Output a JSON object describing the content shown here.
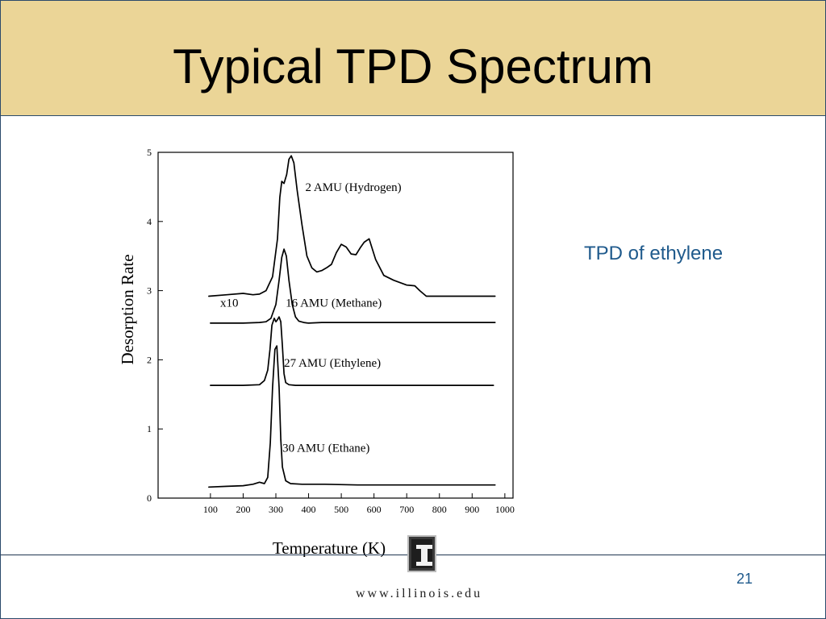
{
  "slide": {
    "title": "Typical TPD Spectrum",
    "side_note": "TPD of ethylene",
    "page_number": "21",
    "footer_url": "www.illinois.edu",
    "logo_icon": "illinois-block-i-icon",
    "colors": {
      "title_bar": "#ebd597",
      "accent_text": "#1f5a8c",
      "border": "#2b4a6b"
    }
  },
  "chart_data": {
    "type": "line",
    "title": "",
    "xlabel": "Temperature (K)",
    "ylabel": "Desorption Rate",
    "xlim": [
      -60,
      1025
    ],
    "ylim": [
      0,
      5
    ],
    "x_ticks": [
      100,
      200,
      300,
      400,
      500,
      600,
      700,
      800,
      900,
      1000
    ],
    "y_ticks": [
      0,
      1,
      2,
      3,
      4,
      5
    ],
    "grid": false,
    "legend": "none",
    "annotations": [
      {
        "text": "2 AMU (Hydrogen)",
        "x": 390,
        "y": 4.44
      },
      {
        "text": "x10",
        "x": 130,
        "y": 2.77
      },
      {
        "text": "16 AMU (Methane)",
        "x": 330,
        "y": 2.77
      },
      {
        "text": "27 AMU (Ethylene)",
        "x": 325,
        "y": 1.9
      },
      {
        "text": "30 AMU (Ethane)",
        "x": 320,
        "y": 0.67
      }
    ],
    "series": [
      {
        "name": "2 AMU (Hydrogen)",
        "x": [
          95,
          150,
          200,
          230,
          250,
          270,
          290,
          305,
          312,
          318,
          325,
          333,
          340,
          347,
          355,
          365,
          380,
          395,
          410,
          425,
          440,
          455,
          470,
          485,
          500,
          515,
          530,
          545,
          558,
          570,
          585,
          605,
          630,
          660,
          700,
          725,
          740,
          760,
          800,
          850,
          900,
          970
        ],
        "y": [
          2.92,
          2.94,
          2.96,
          2.94,
          2.95,
          3.0,
          3.2,
          3.75,
          4.35,
          4.58,
          4.55,
          4.68,
          4.9,
          4.95,
          4.85,
          4.45,
          3.95,
          3.5,
          3.33,
          3.27,
          3.29,
          3.33,
          3.38,
          3.55,
          3.67,
          3.63,
          3.53,
          3.52,
          3.62,
          3.7,
          3.75,
          3.45,
          3.22,
          3.15,
          3.08,
          3.07,
          3.0,
          2.92,
          2.92,
          2.92,
          2.92,
          2.92
        ]
      },
      {
        "name": "16 AMU (Methane)",
        "x": [
          100,
          200,
          250,
          270,
          285,
          300,
          310,
          318,
          325,
          332,
          340,
          350,
          360,
          370,
          385,
          400,
          440,
          500,
          600,
          700,
          800,
          900,
          970
        ],
        "y": [
          2.53,
          2.53,
          2.54,
          2.55,
          2.6,
          2.8,
          3.15,
          3.48,
          3.6,
          3.5,
          3.15,
          2.8,
          2.62,
          2.56,
          2.54,
          2.53,
          2.54,
          2.54,
          2.54,
          2.54,
          2.54,
          2.54,
          2.54
        ]
      },
      {
        "name": "27 AMU (Ethylene)",
        "x": [
          100,
          200,
          250,
          265,
          275,
          282,
          288,
          295,
          300,
          305,
          310,
          315,
          320,
          325,
          330,
          340,
          360,
          400,
          500,
          600,
          700,
          800,
          900,
          965
        ],
        "y": [
          1.63,
          1.63,
          1.64,
          1.7,
          1.85,
          2.15,
          2.5,
          2.6,
          2.55,
          2.58,
          2.62,
          2.55,
          2.2,
          1.8,
          1.67,
          1.64,
          1.63,
          1.63,
          1.63,
          1.63,
          1.63,
          1.63,
          1.63,
          1.63
        ]
      },
      {
        "name": "30 AMU (Ethane)",
        "x": [
          95,
          150,
          200,
          230,
          250,
          265,
          275,
          283,
          290,
          297,
          303,
          310,
          315,
          320,
          330,
          345,
          380,
          450,
          550,
          650,
          750,
          850,
          970
        ],
        "y": [
          0.16,
          0.17,
          0.18,
          0.2,
          0.23,
          0.21,
          0.3,
          0.8,
          1.6,
          2.15,
          2.2,
          1.6,
          0.85,
          0.45,
          0.25,
          0.21,
          0.2,
          0.2,
          0.19,
          0.19,
          0.19,
          0.19,
          0.19
        ]
      }
    ]
  }
}
